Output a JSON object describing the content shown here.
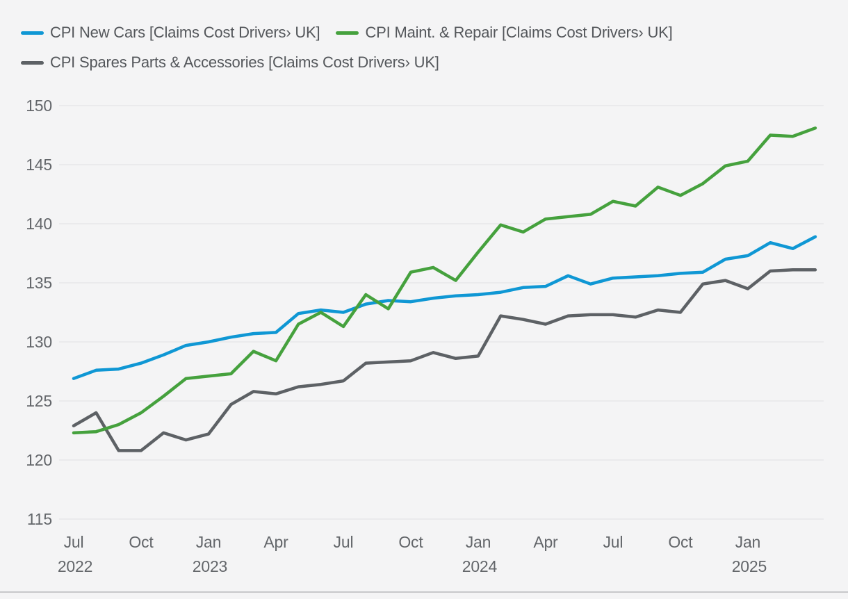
{
  "legend": {
    "items": [
      {
        "label": "CPI New Cars [Claims Cost Drivers› UK]",
        "color": "#0f97d4"
      },
      {
        "label": "CPI Maint. & Repair [Claims Cost Drivers› UK]",
        "color": "#45a13d"
      },
      {
        "label": "CPI Spares Parts & Accessories [Claims Cost Drivers› UK]",
        "color": "#5d6165"
      }
    ]
  },
  "chart_data": {
    "type": "line",
    "title": "",
    "xlabel": "",
    "ylabel": "",
    "ylim": [
      115,
      150
    ],
    "grid": true,
    "legend_position": "top",
    "y_ticks": [
      150,
      145,
      140,
      135,
      130,
      125,
      120,
      115
    ],
    "x_ticks": [
      {
        "index": 0,
        "month": "Jul",
        "year": "2022"
      },
      {
        "index": 3,
        "month": "Oct"
      },
      {
        "index": 6,
        "month": "Jan",
        "year": "2023"
      },
      {
        "index": 9,
        "month": "Apr"
      },
      {
        "index": 12,
        "month": "Jul"
      },
      {
        "index": 15,
        "month": "Oct"
      },
      {
        "index": 18,
        "month": "Jan",
        "year": "2024"
      },
      {
        "index": 21,
        "month": "Apr"
      },
      {
        "index": 24,
        "month": "Jul"
      },
      {
        "index": 27,
        "month": "Oct"
      },
      {
        "index": 30,
        "month": "Jan",
        "year": "2025"
      }
    ],
    "x": [
      "Jul 2022",
      "Aug 2022",
      "Sep 2022",
      "Oct 2022",
      "Nov 2022",
      "Dec 2022",
      "Jan 2023",
      "Feb 2023",
      "Mar 2023",
      "Apr 2023",
      "May 2023",
      "Jun 2023",
      "Jul 2023",
      "Aug 2023",
      "Sep 2023",
      "Oct 2023",
      "Nov 2023",
      "Dec 2023",
      "Jan 2024",
      "Feb 2024",
      "Mar 2024",
      "Apr 2024",
      "May 2024",
      "Jun 2024",
      "Jul 2024",
      "Aug 2024",
      "Sep 2024",
      "Oct 2024",
      "Nov 2024",
      "Dec 2024",
      "Jan 2025",
      "Feb 2025",
      "Mar 2025",
      "Apr 2025"
    ],
    "series": [
      {
        "name": "CPI New Cars [Claims Cost Drivers› UK]",
        "color": "#0f97d4",
        "values": [
          126.9,
          127.6,
          127.7,
          128.2,
          128.9,
          129.7,
          130.0,
          130.4,
          130.7,
          130.8,
          132.4,
          132.7,
          132.5,
          133.2,
          133.5,
          133.4,
          133.7,
          133.9,
          134.0,
          134.2,
          134.6,
          134.7,
          135.6,
          134.9,
          135.4,
          135.5,
          135.6,
          135.8,
          135.9,
          137.0,
          137.3,
          138.4,
          137.9,
          138.9
        ]
      },
      {
        "name": "CPI Maint. & Repair [Claims Cost Drivers› UK]",
        "color": "#45a13d",
        "values": [
          122.3,
          122.4,
          123.0,
          124.0,
          125.4,
          126.9,
          127.1,
          127.3,
          129.2,
          128.4,
          131.5,
          132.5,
          131.3,
          134.0,
          132.8,
          135.9,
          136.3,
          135.2,
          137.6,
          139.9,
          139.3,
          140.4,
          140.6,
          140.8,
          141.9,
          141.5,
          143.1,
          142.4,
          143.4,
          144.9,
          145.3,
          147.5,
          147.4,
          148.1
        ]
      },
      {
        "name": "CPI Spares Parts & Accessories [Claims Cost Drivers› UK]",
        "color": "#5d6165",
        "values": [
          122.9,
          124.0,
          120.8,
          120.8,
          122.3,
          121.7,
          122.2,
          124.7,
          125.8,
          125.6,
          126.2,
          126.4,
          126.7,
          128.2,
          128.3,
          128.4,
          129.1,
          128.6,
          128.8,
          132.2,
          131.9,
          131.5,
          132.2,
          132.3,
          132.3,
          132.1,
          132.7,
          132.5,
          134.9,
          135.2,
          134.5,
          136.0,
          136.1,
          136.1
        ]
      }
    ]
  }
}
